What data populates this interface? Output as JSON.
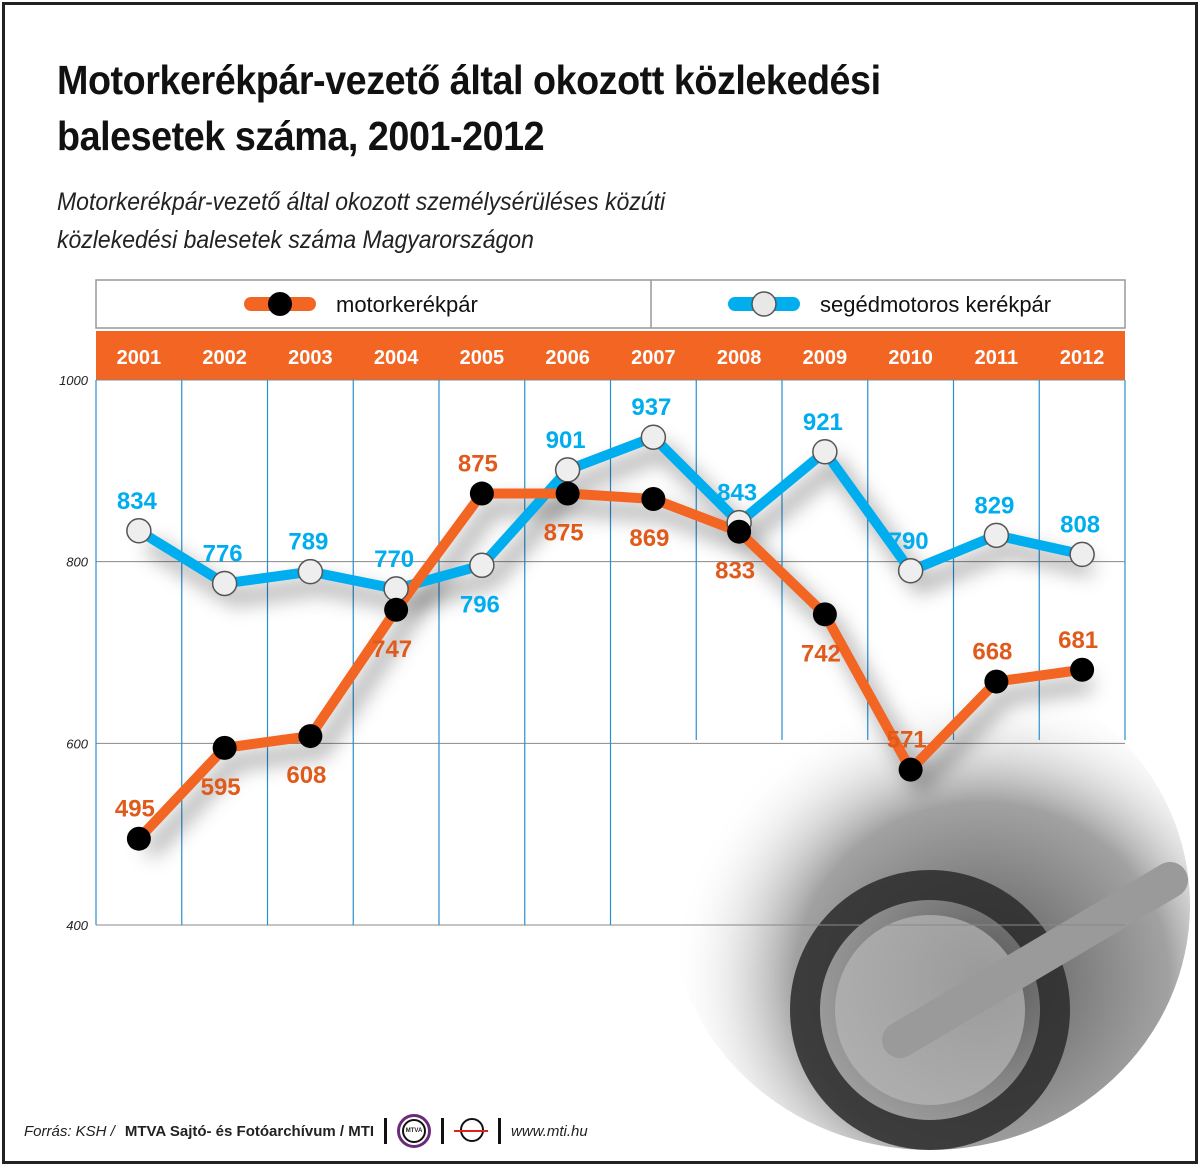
{
  "title_line1": "Motorkerékpár-vezető által okozott közlekedési",
  "title_line2": "balesetek száma, 2001-2012",
  "subtitle_line1": "Motorkerékpár-vezető által okozott személysérüléses közúti",
  "subtitle_line2": "közlekedési balesetek száma Magyarországon",
  "footer": {
    "source_prefix": "Forrás: KSH /",
    "source_bold": "MTVA Sajtó- és Fotóarchívum / MTI",
    "logo_mtva": "MTVA",
    "url": "www.mti.hu"
  },
  "colors": {
    "orange": "#f26522",
    "blue": "#00aeef",
    "grid_blue": "#2a8fd0"
  },
  "chart_data": {
    "type": "line",
    "categories": [
      "2001",
      "2002",
      "2003",
      "2004",
      "2005",
      "2006",
      "2007",
      "2008",
      "2009",
      "2010",
      "2011",
      "2012"
    ],
    "yticks": [
      "1000",
      "800",
      "600",
      "400"
    ],
    "ylim": [
      400,
      1000
    ],
    "legend_placement": "top",
    "series": [
      {
        "name": "motorkerékpár",
        "color": "#f26522",
        "marker": "black",
        "values": [
          495,
          595,
          608,
          747,
          875,
          875,
          869,
          833,
          742,
          571,
          668,
          681
        ],
        "label_pos": [
          "above",
          "below",
          "below",
          "below",
          "above",
          "below",
          "below",
          "below",
          "below",
          "above",
          "above",
          "above"
        ]
      },
      {
        "name": "segédmotoros kerékpár",
        "color": "#00aeef",
        "marker": "white",
        "values": [
          834,
          776,
          789,
          770,
          796,
          901,
          937,
          843,
          921,
          790,
          829,
          808
        ],
        "label_pos": [
          "above",
          "above",
          "above",
          "above",
          "below",
          "above",
          "above",
          "above",
          "above",
          "above",
          "above",
          "above"
        ]
      }
    ]
  }
}
